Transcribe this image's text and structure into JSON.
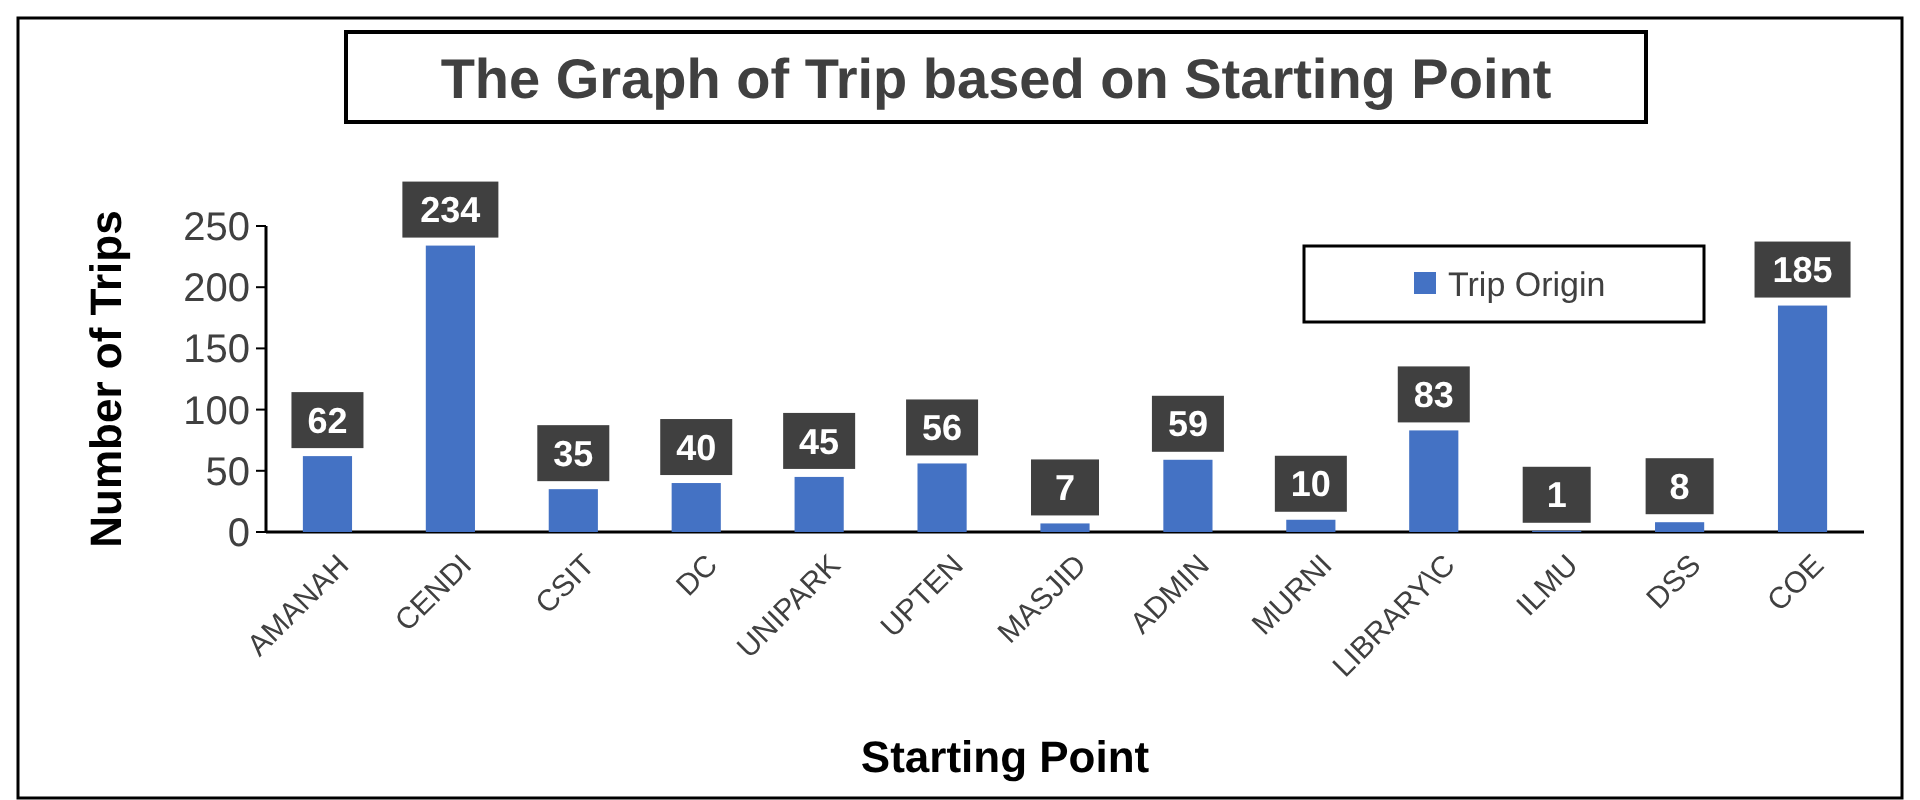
{
  "chart_data": {
    "type": "bar",
    "title": "The Graph of Trip based on Starting Point",
    "xlabel": "Starting Point",
    "ylabel": "Number of Trips",
    "categories": [
      "AMANAH",
      "CENDI",
      "CSIT",
      "DC",
      "UNIPARK",
      "UPTEN",
      "MASJID",
      "ADMIN",
      "MURNI",
      "LIBRARY\\C",
      "ILMU",
      "DSS",
      "COE"
    ],
    "series": [
      {
        "name": "Trip Origin",
        "color": "#4472c4",
        "values": [
          62,
          234,
          35,
          40,
          45,
          56,
          7,
          59,
          10,
          83,
          1,
          8,
          185
        ]
      }
    ],
    "ylim": [
      0,
      250
    ],
    "yticks": [
      0,
      50,
      100,
      150,
      200,
      250
    ],
    "grid": false,
    "legend": "top right",
    "data_labels": true
  }
}
